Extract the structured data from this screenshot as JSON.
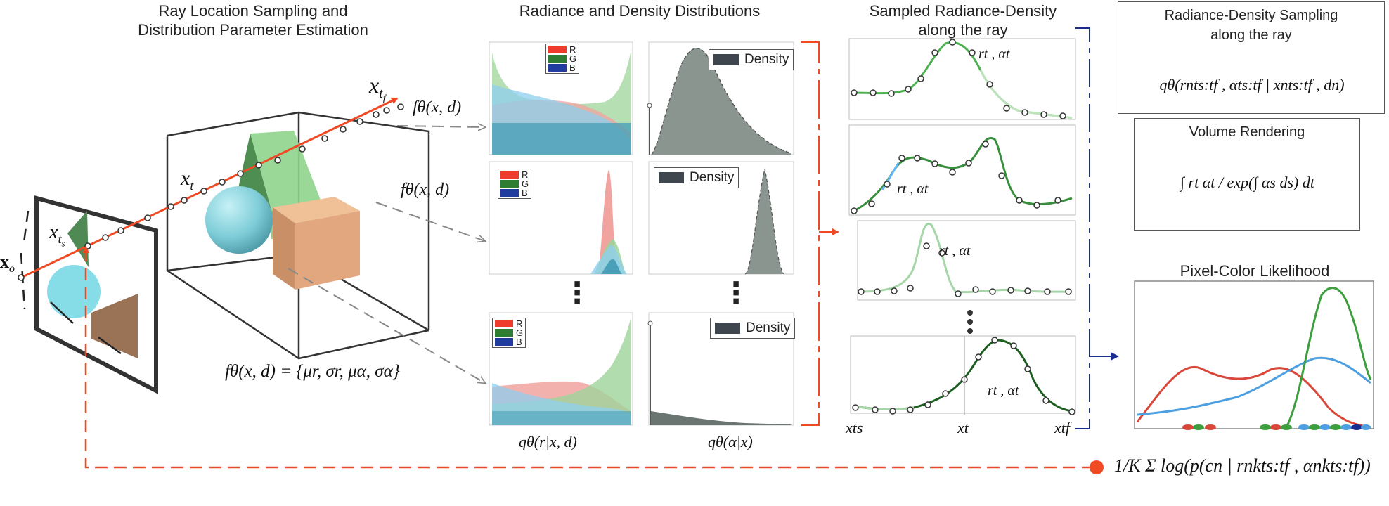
{
  "titles": {
    "sampling_line1": "Ray Location Sampling and",
    "sampling_line2": "Distribution Parameter Estimation",
    "distributions": "Radiance and Density Distributions",
    "sampled_line1": "Sampled Radiance-Density",
    "sampled_line2": "along the ray",
    "pixel_likelihood": "Pixel-Color Likelihood"
  },
  "scene_labels": {
    "x_tf": "x",
    "x_tf_sub": "t",
    "x_tf_subsub": "f",
    "x_t": "x",
    "x_t_sub": "t",
    "x_ts": "x",
    "x_ts_sub": "t",
    "x_ts_subsub": "s",
    "x_o": "x",
    "x_o_sub": "o",
    "f_top": "fθ(x, d)",
    "f_mid": "fθ(x, d)",
    "f_params": "fθ(x, d) = {μr, σr, μα, σα}"
  },
  "radiance_legend": [
    "R",
    "G",
    "B"
  ],
  "density_legend": "Density",
  "dots": "⋮",
  "axis_labels": {
    "q_r": "qθ(r|x, d)",
    "q_alpha": "qθ(α|x)",
    "x_ts": "xts",
    "x_t": "xt",
    "x_tf": "xtf"
  },
  "curve_labels": [
    "rt , αt",
    "rt , αt",
    "rt , αt",
    "rt , αt"
  ],
  "legend_boxes": {
    "sampling_title_line1": "Radiance-Density Sampling",
    "sampling_title_line2": "along the ray",
    "sampling_formula": "qθ(rnts:tf , αts:tf | xnts:tf , dn)",
    "volume_title": "Volume Rendering",
    "volume_formula": "∫ rt αt / exp(∫ αs ds) dt"
  },
  "likelihood_formula": "1/K Σ log(p(cn | rnkts:tf , αnkts:tf))",
  "colors": {
    "ray_red": "#f04a25",
    "dashed_blue": "#1a2c8f",
    "radiance_red": "#ef3b2c",
    "radiance_green": "#2e7d32",
    "radiance_blue": "#1f3c9e",
    "density_gray": "#8a9590",
    "curve_green": "#4caf50",
    "curve_lightblue": "#64b5f6",
    "likelihood_red": "#d9473a",
    "likelihood_blue": "#4d9fe0",
    "likelihood_green": "#3d9e3d"
  }
}
